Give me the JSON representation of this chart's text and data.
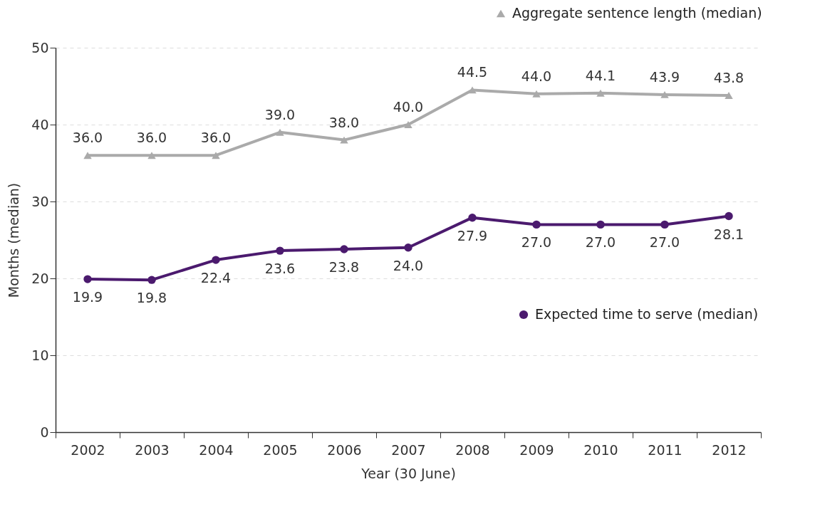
{
  "chart_data": {
    "type": "line",
    "xlabel": "Year (30 June)",
    "ylabel": "Months (median)",
    "categories": [
      "2002",
      "2003",
      "2004",
      "2005",
      "2006",
      "2007",
      "2008",
      "2009",
      "2010",
      "2011",
      "2012"
    ],
    "series": [
      {
        "name": "Aggregate sentence length (median)",
        "color": "#aaaaaa",
        "marker": "triangle",
        "values": [
          36.0,
          36.0,
          36.0,
          39.0,
          38.0,
          40.0,
          44.5,
          44.0,
          44.1,
          43.9,
          43.8
        ],
        "value_labels": [
          "36.0",
          "36.0",
          "36.0",
          "39.0",
          "38.0",
          "40.0",
          "44.5",
          "44.0",
          "44.1",
          "43.9",
          "43.8"
        ]
      },
      {
        "name": "Expected time to serve (median)",
        "color": "#4b1a6e",
        "marker": "circle",
        "values": [
          19.9,
          19.8,
          22.4,
          23.6,
          23.8,
          24.0,
          27.9,
          27.0,
          27.0,
          27.0,
          28.1
        ],
        "value_labels": [
          "19.9",
          "19.8",
          "22.4",
          "23.6",
          "23.8",
          "24.0",
          "27.9",
          "27.0",
          "27.0",
          "27.0",
          "28.1"
        ]
      }
    ],
    "ylim": [
      0,
      50
    ],
    "yticks": [
      0,
      10,
      20,
      30,
      40,
      50
    ],
    "grid": "y",
    "legend": "right"
  }
}
